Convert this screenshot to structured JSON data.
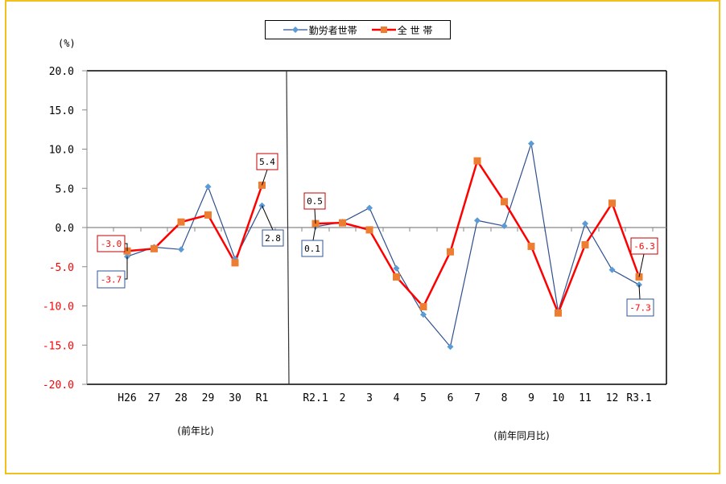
{
  "chart_data": {
    "type": "line",
    "title": "",
    "ylabel": "(%)",
    "xlabel": "",
    "ylim": [
      -20,
      20
    ],
    "yticks": [
      "20.0",
      "15.0",
      "10.0",
      "5.0",
      "0.0",
      "-5.0",
      "-10.0",
      "-15.0",
      "-20.0"
    ],
    "grid": false,
    "legend_position": "top",
    "panels": [
      {
        "caption": "(前年比)",
        "categories": [
          "H26",
          "27",
          "28",
          "29",
          "30",
          "R1"
        ]
      },
      {
        "caption": "(前年同月比)",
        "categories": [
          "R2.1",
          "2",
          "3",
          "4",
          "5",
          "6",
          "7",
          "8",
          "9",
          "10",
          "11",
          "12",
          "R3.1"
        ]
      }
    ],
    "categories": [
      "H26",
      "27",
      "28",
      "29",
      "30",
      "R1",
      "R2.1",
      "2",
      "3",
      "4",
      "5",
      "6",
      "7",
      "8",
      "9",
      "10",
      "11",
      "12",
      "R3.1"
    ],
    "series": [
      {
        "name": "勤労者世帯",
        "color": "#2f4f8f",
        "marker": "diamond",
        "marker_color": "#5b9bd5",
        "values": [
          -3.7,
          -2.5,
          -2.8,
          5.2,
          -4.0,
          2.8,
          0.1,
          0.7,
          2.5,
          -5.2,
          -11.1,
          -15.2,
          0.9,
          0.2,
          10.7,
          -10.7,
          0.5,
          -5.4,
          -7.3
        ]
      },
      {
        "name": "全 世 帯",
        "color": "#ff0000",
        "marker": "square",
        "marker_color": "#ed7d31",
        "values": [
          -3.0,
          -2.7,
          0.7,
          1.6,
          -4.5,
          5.4,
          0.5,
          0.6,
          -0.3,
          -6.3,
          -10.1,
          -3.1,
          8.5,
          3.3,
          -2.4,
          -10.9,
          -2.2,
          3.1,
          -6.3
        ]
      }
    ],
    "annotations": [
      {
        "text": "-3.0",
        "series": "全 世 帯",
        "category": "H26"
      },
      {
        "text": "-3.7",
        "series": "勤労者世帯",
        "category": "H26"
      },
      {
        "text": "5.4",
        "series": "全 世 帯",
        "category": "R1"
      },
      {
        "text": "2.8",
        "series": "勤労者世帯",
        "category": "R1"
      },
      {
        "text": "0.5",
        "series": "全 世 帯",
        "category": "R2.1"
      },
      {
        "text": "0.1",
        "series": "勤労者世帯",
        "category": "R2.1"
      },
      {
        "text": "-6.3",
        "series": "全 世 帯",
        "category": "R3.1"
      },
      {
        "text": "-7.3",
        "series": "勤労者世帯",
        "category": "R3.1"
      }
    ]
  }
}
